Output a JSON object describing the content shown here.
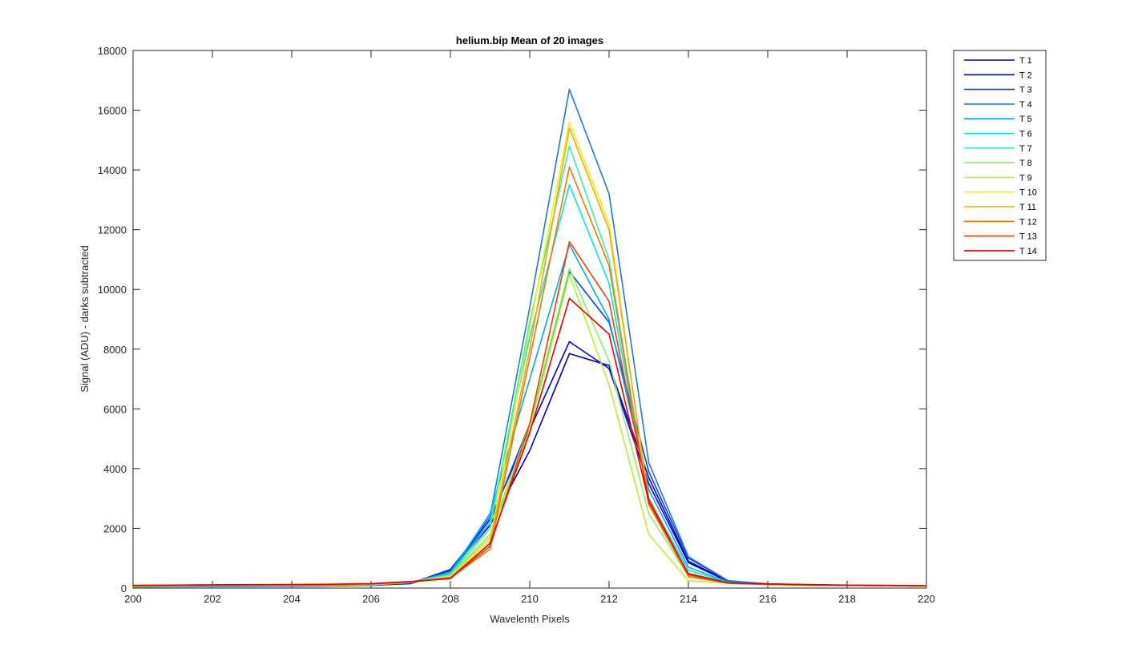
{
  "chart_data": {
    "type": "line",
    "title": "helium.bip  Mean of 20 images",
    "xlabel": "Wavelenth Pixels",
    "ylabel": "Signal (ADU) - darks subtracted",
    "xlim": [
      200,
      220
    ],
    "ylim": [
      0,
      18000
    ],
    "xticks": [
      "200",
      "202",
      "204",
      "206",
      "208",
      "210",
      "212",
      "214",
      "216",
      "218",
      "220"
    ],
    "yticks": [
      "0",
      "2000",
      "4000",
      "6000",
      "8000",
      "10000",
      "12000",
      "14000",
      "16000",
      "18000"
    ],
    "grid": false,
    "legend_position": "outside-top-right",
    "x": [
      200,
      201,
      202,
      203,
      204,
      205,
      206,
      207,
      208,
      209,
      210,
      211,
      212,
      213,
      214,
      215,
      216,
      217,
      218,
      219,
      220
    ],
    "series": [
      {
        "name": "T 1",
        "color": "#0000b4",
        "values": [
          40,
          45,
          50,
          55,
          60,
          70,
          90,
          150,
          560,
          2100,
          4600,
          7850,
          7450,
          3700,
          900,
          230,
          140,
          110,
          90,
          80,
          70
        ]
      },
      {
        "name": "T 2",
        "color": "#0000dc",
        "values": [
          45,
          50,
          55,
          60,
          65,
          75,
          95,
          160,
          620,
          2300,
          5300,
          8250,
          7350,
          3500,
          850,
          220,
          140,
          110,
          90,
          80,
          70
        ]
      },
      {
        "name": "T 3",
        "color": "#0040f0",
        "values": [
          50,
          55,
          60,
          65,
          70,
          80,
          100,
          170,
          580,
          2200,
          5500,
          10600,
          8900,
          3900,
          1000,
          240,
          140,
          110,
          90,
          80,
          70
        ]
      },
      {
        "name": "T 4",
        "color": "#1e78dc",
        "values": [
          50,
          55,
          60,
          65,
          70,
          80,
          100,
          180,
          560,
          2400,
          9400,
          16700,
          13200,
          4200,
          1050,
          250,
          140,
          110,
          90,
          80,
          70
        ]
      },
      {
        "name": "T 5",
        "color": "#00aaf0",
        "values": [
          55,
          60,
          65,
          70,
          75,
          85,
          110,
          190,
          500,
          2500,
          7000,
          11500,
          9000,
          3300,
          700,
          200,
          130,
          110,
          90,
          80,
          70
        ]
      },
      {
        "name": "T 6",
        "color": "#00e6e6",
        "values": [
          55,
          60,
          65,
          70,
          75,
          85,
          110,
          190,
          480,
          2200,
          8400,
          13500,
          10200,
          3000,
          600,
          190,
          130,
          100,
          90,
          80,
          70
        ]
      },
      {
        "name": "T 7",
        "color": "#32f0b4",
        "values": [
          60,
          65,
          70,
          75,
          80,
          90,
          115,
          190,
          450,
          2000,
          8900,
          14800,
          11000,
          2800,
          500,
          180,
          130,
          100,
          90,
          80,
          70
        ]
      },
      {
        "name": "T 8",
        "color": "#8cf064",
        "values": [
          60,
          65,
          70,
          75,
          80,
          90,
          115,
          190,
          420,
          1800,
          5500,
          10700,
          7600,
          2500,
          400,
          170,
          120,
          100,
          90,
          80,
          70
        ]
      },
      {
        "name": "T 9",
        "color": "#b4f032",
        "values": [
          65,
          70,
          75,
          80,
          85,
          95,
          120,
          200,
          400,
          1700,
          5300,
          10500,
          6800,
          1800,
          250,
          160,
          120,
          100,
          90,
          80,
          70
        ]
      },
      {
        "name": "T 10",
        "color": "#f0f000",
        "values": [
          70,
          75,
          80,
          85,
          90,
          100,
          125,
          200,
          380,
          1600,
          8700,
          15600,
          12200,
          2900,
          400,
          170,
          120,
          100,
          90,
          80,
          70
        ]
      },
      {
        "name": "T 11",
        "color": "#f0aa00",
        "values": [
          75,
          80,
          85,
          90,
          95,
          105,
          130,
          200,
          360,
          1500,
          8000,
          15400,
          12000,
          3000,
          420,
          170,
          120,
          100,
          90,
          80,
          70
        ]
      },
      {
        "name": "T 12",
        "color": "#f07800",
        "values": [
          80,
          85,
          90,
          95,
          100,
          110,
          135,
          200,
          340,
          1300,
          7700,
          14100,
          10800,
          2800,
          380,
          160,
          120,
          100,
          90,
          80,
          70
        ]
      },
      {
        "name": "T 13",
        "color": "#f03c00",
        "values": [
          85,
          95,
          105,
          110,
          115,
          125,
          145,
          210,
          320,
          1400,
          5500,
          11600,
          9600,
          3000,
          450,
          170,
          130,
          110,
          95,
          85,
          75
        ]
      },
      {
        "name": "T 14",
        "color": "#e60000",
        "values": [
          90,
          100,
          110,
          115,
          120,
          130,
          150,
          220,
          330,
          1500,
          5200,
          9700,
          8500,
          2900,
          480,
          180,
          140,
          120,
          100,
          90,
          80
        ]
      }
    ]
  }
}
